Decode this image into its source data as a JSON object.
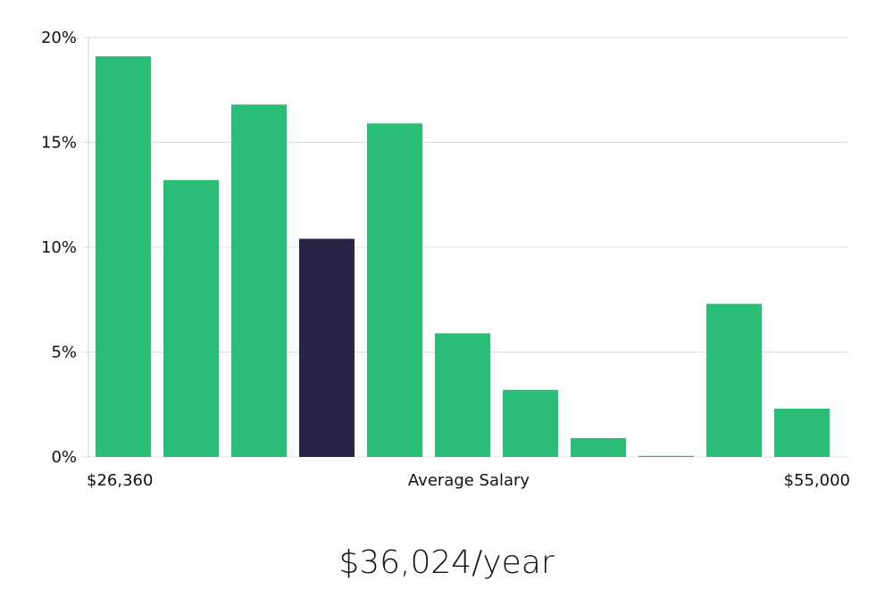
{
  "chart_data": {
    "type": "bar",
    "yticks": [
      "0%",
      "5%",
      "10%",
      "15%",
      "20%"
    ],
    "ylim": [
      0,
      20
    ],
    "values": [
      19.1,
      13.2,
      16.8,
      10.4,
      15.9,
      5.9,
      3.2,
      0.9,
      0.05,
      7.3,
      2.3
    ],
    "highlight_index": 3,
    "x_min_label": "$26,360",
    "x_mid_label": "Average Salary",
    "x_max_label": "$55,000",
    "grid": true,
    "colors": {
      "bar": "#2abd77",
      "highlight": "#272445",
      "grid": "#dcdcdc"
    }
  },
  "headline": "$36,024/year"
}
